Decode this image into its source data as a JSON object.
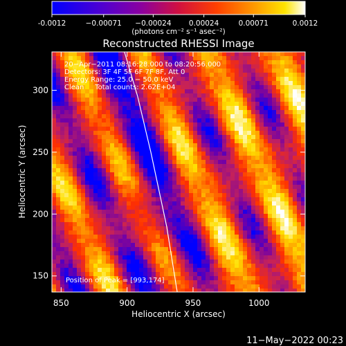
{
  "chart_data": {
    "type": "heatmap",
    "title": "Reconstructed RHESSI Image",
    "xlabel": "Heliocentric X (arcsec)",
    "ylabel": "Heliocentric Y (arcsec)",
    "xlim": [
      843,
      1035
    ],
    "ylim": [
      137,
      331
    ],
    "x_ticks": [
      850,
      900,
      950,
      1000
    ],
    "x_tick_labels": [
      "850",
      "900",
      "950",
      "1000"
    ],
    "y_ticks": [
      150,
      200,
      250,
      300
    ],
    "y_tick_labels": [
      "150",
      "200",
      "250",
      "300"
    ],
    "colorbar": {
      "range": [
        -0.0012,
        0.0012
      ],
      "ticks": [
        -0.0012,
        -0.00071,
        -0.00024,
        0.00024,
        0.00071,
        0.0012
      ],
      "tick_labels": [
        "-0.0012",
        "−0.00071",
        "−0.00024",
        "0.00024",
        "0.00071",
        "0.0012"
      ],
      "units": "(photons cm⁻² s⁻¹ asec⁻²)",
      "colors": [
        "#0000ff",
        "#7000a8",
        "#c02060",
        "#ff3000",
        "#ff9000",
        "#ffe000",
        "#ffffff"
      ]
    },
    "annotations": [
      "20−Apr−2011 08:16:28.000 to 08:20:56.000",
      "Detectors: 3F 4F 5F 6F 7F 8F, Att 0",
      "Energy Range: 25.0 − 50.0 keV",
      "Clean     Total counts: 2.62E+04"
    ],
    "peak_label": "Position of Peak = [993,174]",
    "peak": [
      993,
      174
    ],
    "limb": [
      [
        938,
        137
      ],
      [
        930,
        190
      ],
      [
        918,
        250
      ],
      [
        908,
        295
      ],
      [
        898,
        331
      ]
    ]
  },
  "footer": {
    "date": "11−May−2022 00:23"
  }
}
